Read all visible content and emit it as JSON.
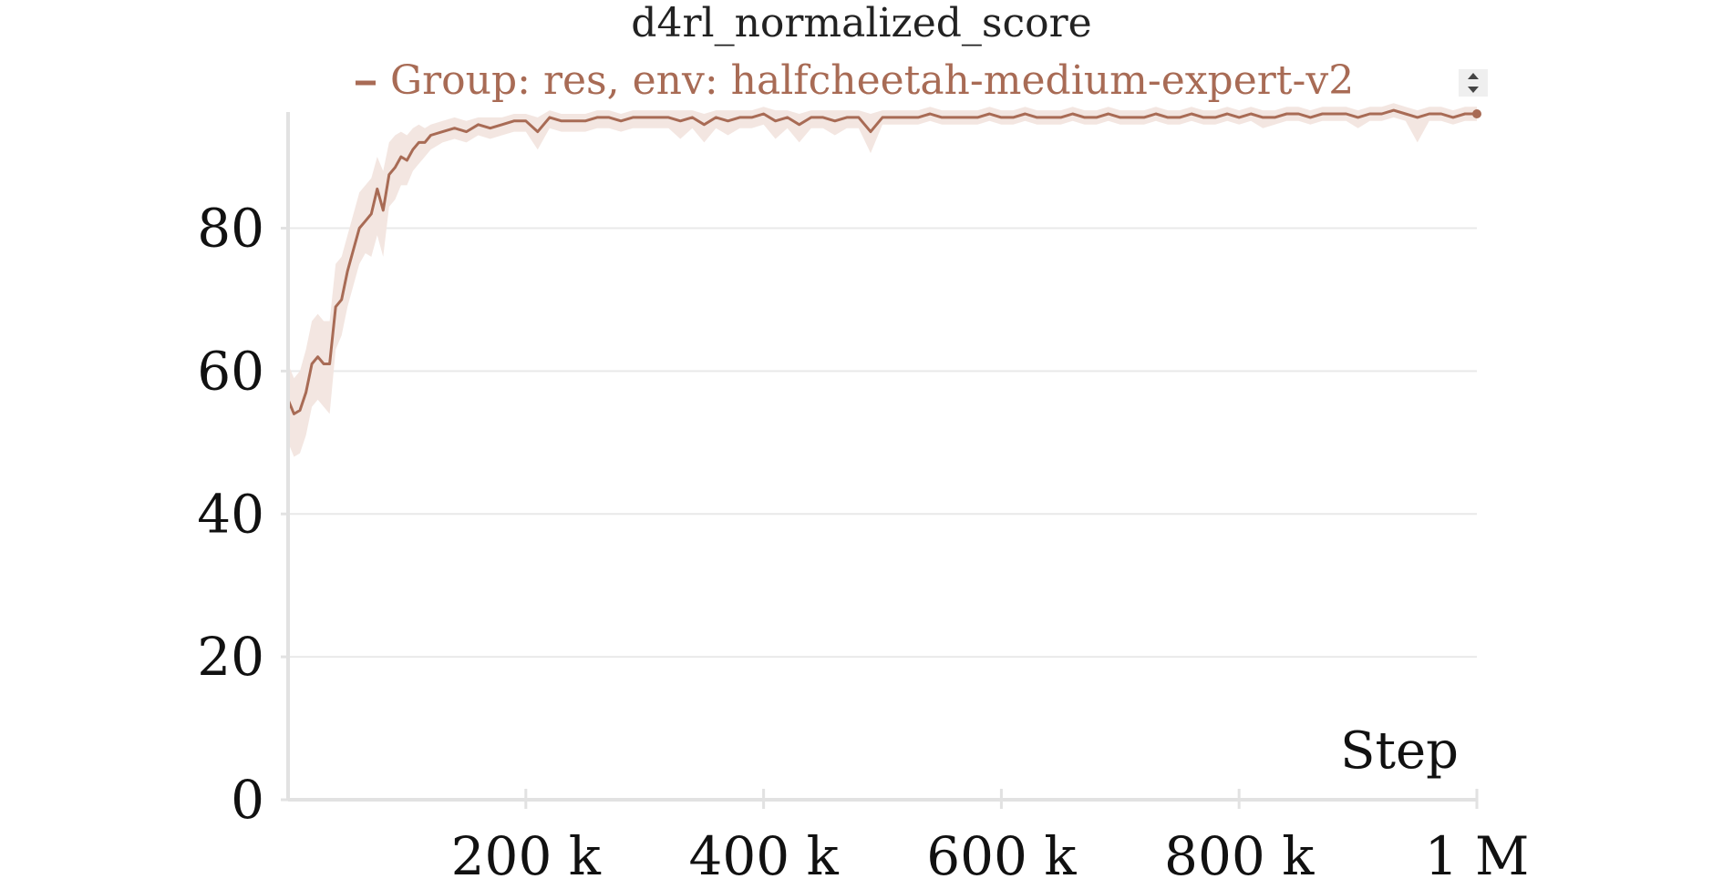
{
  "chart_data": {
    "type": "line",
    "title": "d4rl_normalized_score",
    "xlabel": "Step",
    "ylabel": "",
    "xlim": [
      0,
      1000000
    ],
    "ylim": [
      0,
      96
    ],
    "y_ticks": [
      0,
      20,
      40,
      60,
      80
    ],
    "y_tick_labels": [
      "0",
      "20",
      "40",
      "60",
      "80"
    ],
    "x_ticks": [
      200000,
      400000,
      600000,
      800000,
      1000000
    ],
    "x_tick_labels": [
      "200 k",
      "400 k",
      "600 k",
      "800 k",
      "1 M"
    ],
    "grid": true,
    "legend_position": "top",
    "series": [
      {
        "name": "Group: res, env: halfcheetah-medium-expert-v2",
        "color": "#a86b55",
        "band_color": "#f3e6e1",
        "x": [
          0,
          5000,
          10000,
          15000,
          20000,
          25000,
          30000,
          35000,
          40000,
          45000,
          50000,
          55000,
          60000,
          65000,
          70000,
          75000,
          80000,
          85000,
          90000,
          95000,
          100000,
          105000,
          110000,
          115000,
          120000,
          130000,
          140000,
          150000,
          160000,
          170000,
          180000,
          190000,
          200000,
          210000,
          220000,
          230000,
          240000,
          250000,
          260000,
          270000,
          280000,
          290000,
          300000,
          310000,
          320000,
          330000,
          340000,
          350000,
          360000,
          370000,
          380000,
          390000,
          400000,
          410000,
          420000,
          430000,
          440000,
          450000,
          460000,
          470000,
          480000,
          490000,
          500000,
          510000,
          520000,
          530000,
          540000,
          550000,
          560000,
          570000,
          580000,
          590000,
          600000,
          610000,
          620000,
          630000,
          640000,
          650000,
          660000,
          670000,
          680000,
          690000,
          700000,
          710000,
          720000,
          730000,
          740000,
          750000,
          760000,
          770000,
          780000,
          790000,
          800000,
          810000,
          820000,
          830000,
          840000,
          850000,
          860000,
          870000,
          880000,
          890000,
          900000,
          910000,
          920000,
          930000,
          940000,
          950000,
          960000,
          970000,
          980000,
          990000,
          1000000
        ],
        "y": [
          56.0,
          54.0,
          54.5,
          57.0,
          61.0,
          62.0,
          61.0,
          61.0,
          69.0,
          70.0,
          74.0,
          77.0,
          80.0,
          81.0,
          82.0,
          85.5,
          82.5,
          87.5,
          88.5,
          90.0,
          89.5,
          91.0,
          92.0,
          92.0,
          93.0,
          93.5,
          94.0,
          93.5,
          94.5,
          94.0,
          94.5,
          95.0,
          95.0,
          93.5,
          95.5,
          95.0,
          95.0,
          95.0,
          95.5,
          95.5,
          95.0,
          95.5,
          95.5,
          95.5,
          95.5,
          95.0,
          95.5,
          94.5,
          95.5,
          95.0,
          95.5,
          95.5,
          96.0,
          95.0,
          95.5,
          94.5,
          95.5,
          95.5,
          95.0,
          95.5,
          95.5,
          93.5,
          95.5,
          95.5,
          95.5,
          95.5,
          96.0,
          95.5,
          95.5,
          95.5,
          95.5,
          96.0,
          95.5,
          95.5,
          96.0,
          95.5,
          95.5,
          95.5,
          96.0,
          95.5,
          95.5,
          96.0,
          95.5,
          95.5,
          95.5,
          96.0,
          95.5,
          95.5,
          96.0,
          95.5,
          95.5,
          96.0,
          95.5,
          96.0,
          95.5,
          95.5,
          96.0,
          96.0,
          95.5,
          96.0,
          96.0,
          96.0,
          95.5,
          96.0,
          96.0,
          96.5,
          96.0,
          95.5,
          96.0,
          96.0,
          95.5,
          96.0,
          96.0
        ],
        "lower": [
          50.0,
          48.0,
          48.5,
          51.0,
          55.0,
          56.0,
          55.0,
          54.0,
          63.0,
          65.0,
          69.0,
          72.0,
          75.0,
          76.5,
          76.0,
          79.0,
          76.0,
          83.0,
          84.0,
          86.0,
          86.0,
          88.0,
          89.0,
          90.0,
          91.0,
          92.0,
          92.5,
          92.0,
          93.0,
          92.5,
          93.0,
          93.5,
          93.5,
          91.0,
          94.0,
          93.5,
          93.5,
          93.5,
          94.0,
          94.0,
          93.5,
          94.0,
          94.0,
          94.0,
          94.0,
          92.5,
          94.0,
          92.0,
          94.0,
          93.0,
          94.0,
          94.0,
          94.5,
          92.5,
          94.0,
          92.0,
          94.0,
          94.0,
          93.0,
          94.0,
          94.0,
          90.5,
          94.5,
          94.5,
          94.5,
          94.5,
          95.0,
          94.5,
          94.5,
          94.5,
          94.5,
          95.0,
          94.5,
          94.5,
          95.0,
          94.5,
          94.5,
          94.5,
          95.0,
          94.5,
          94.5,
          95.0,
          94.5,
          94.5,
          94.5,
          95.0,
          94.5,
          94.5,
          95.0,
          94.5,
          94.5,
          95.0,
          94.5,
          95.0,
          94.0,
          94.5,
          95.0,
          95.0,
          94.5,
          95.0,
          95.0,
          95.0,
          94.0,
          95.0,
          95.0,
          95.5,
          95.0,
          92.0,
          95.0,
          95.0,
          94.5,
          95.0,
          95.0
        ],
        "upper": [
          61.0,
          59.0,
          60.0,
          63.0,
          67.0,
          68.0,
          67.0,
          67.0,
          75.0,
          76.0,
          79.0,
          82.0,
          85.0,
          86.0,
          87.0,
          90.0,
          88.0,
          92.0,
          93.0,
          93.5,
          93.0,
          94.0,
          94.5,
          94.0,
          94.5,
          95.0,
          95.5,
          95.0,
          95.5,
          95.5,
          95.5,
          96.0,
          96.0,
          95.5,
          96.5,
          96.0,
          96.0,
          96.0,
          96.5,
          96.5,
          96.0,
          96.5,
          96.5,
          96.5,
          96.5,
          96.5,
          96.5,
          96.0,
          96.5,
          96.5,
          96.5,
          96.5,
          97.0,
          96.5,
          96.5,
          96.0,
          96.5,
          96.5,
          96.5,
          96.5,
          96.5,
          96.0,
          96.5,
          96.5,
          96.5,
          96.5,
          97.0,
          96.5,
          96.5,
          96.5,
          96.5,
          97.0,
          96.5,
          96.5,
          97.0,
          96.5,
          96.5,
          96.5,
          97.0,
          96.5,
          96.5,
          97.0,
          96.5,
          96.5,
          96.5,
          97.0,
          96.5,
          96.5,
          97.0,
          96.5,
          96.5,
          97.0,
          96.5,
          97.0,
          96.5,
          96.5,
          97.0,
          97.0,
          96.5,
          97.0,
          97.0,
          97.0,
          96.5,
          97.0,
          97.0,
          97.5,
          97.0,
          96.5,
          97.0,
          97.0,
          96.5,
          97.0,
          97.0
        ]
      }
    ]
  }
}
